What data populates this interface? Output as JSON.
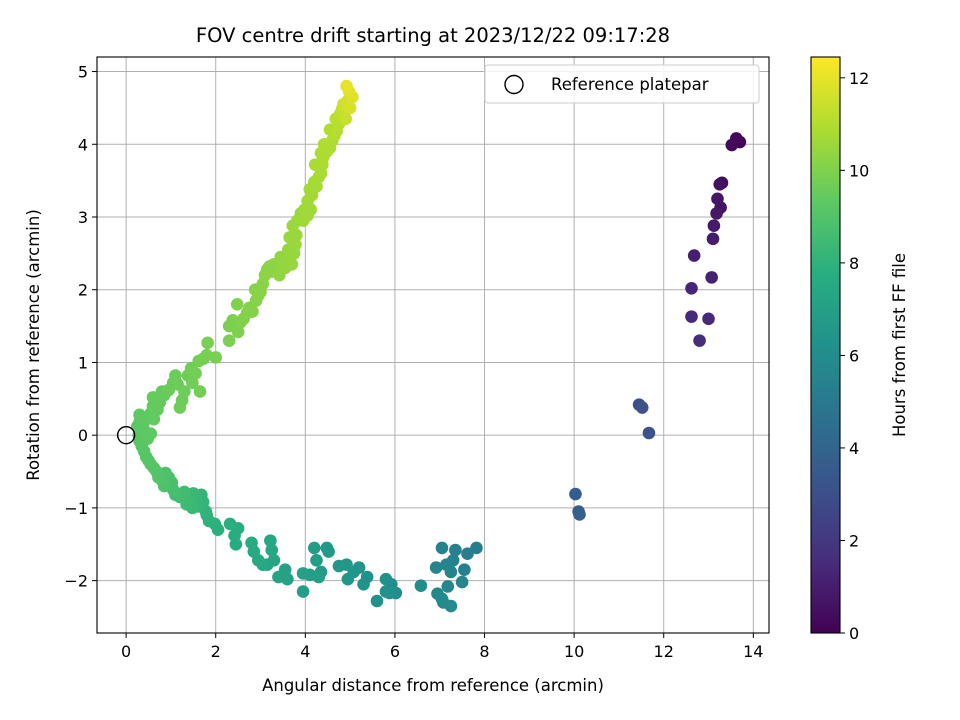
{
  "chart_data": {
    "type": "scatter",
    "title": "FOV centre drift starting at 2023/12/22 09:17:28",
    "xlabel": "Angular distance from reference (arcmin)",
    "ylabel": "Rotation from reference (arcmin)",
    "xlim": [
      -0.65,
      14.35
    ],
    "ylim": [
      -2.72,
      5.2
    ],
    "xticks": [
      0,
      2,
      4,
      6,
      8,
      10,
      12,
      14
    ],
    "yticks": [
      -2,
      -1,
      0,
      1,
      2,
      3,
      4,
      5
    ],
    "grid": true,
    "legend": {
      "position": "top-right",
      "entries": [
        "Reference platepar"
      ]
    },
    "reference_point": {
      "x": 0,
      "y": 0
    },
    "colorbar": {
      "label": "Hours from first FF file",
      "colormap": "viridis",
      "range": [
        0,
        12.45
      ],
      "ticks": [
        0,
        2,
        4,
        6,
        8,
        10,
        12
      ]
    },
    "points": [
      {
        "x": 13.7,
        "y": 4.03,
        "c": 0.1
      },
      {
        "x": 13.62,
        "y": 4.08,
        "c": 0.2
      },
      {
        "x": 13.52,
        "y": 3.99,
        "c": 0.3
      },
      {
        "x": 13.3,
        "y": 3.47,
        "c": 0.4
      },
      {
        "x": 13.25,
        "y": 3.45,
        "c": 0.5
      },
      {
        "x": 13.27,
        "y": 3.13,
        "c": 0.6
      },
      {
        "x": 13.2,
        "y": 3.25,
        "c": 0.7
      },
      {
        "x": 13.18,
        "y": 3.05,
        "c": 0.8
      },
      {
        "x": 13.12,
        "y": 2.88,
        "c": 0.9
      },
      {
        "x": 13.1,
        "y": 2.7,
        "c": 1.0
      },
      {
        "x": 12.68,
        "y": 2.47,
        "c": 1.1
      },
      {
        "x": 13.07,
        "y": 2.17,
        "c": 1.2
      },
      {
        "x": 12.62,
        "y": 2.02,
        "c": 1.3
      },
      {
        "x": 12.62,
        "y": 1.63,
        "c": 1.4
      },
      {
        "x": 13.0,
        "y": 1.6,
        "c": 1.5
      },
      {
        "x": 12.8,
        "y": 1.3,
        "c": 1.6
      },
      {
        "x": 11.45,
        "y": 0.42,
        "c": 3.0
      },
      {
        "x": 11.52,
        "y": 0.38,
        "c": 3.1
      },
      {
        "x": 11.67,
        "y": 0.03,
        "c": 3.2
      },
      {
        "x": 10.03,
        "y": -0.81,
        "c": 3.6
      },
      {
        "x": 10.1,
        "y": -1.05,
        "c": 3.7
      },
      {
        "x": 10.12,
        "y": -1.09,
        "c": 3.75
      },
      {
        "x": 7.82,
        "y": -1.55,
        "c": 5.2
      },
      {
        "x": 7.62,
        "y": -1.63,
        "c": 5.25
      },
      {
        "x": 7.35,
        "y": -1.58,
        "c": 5.3
      },
      {
        "x": 7.55,
        "y": -1.85,
        "c": 5.35
      },
      {
        "x": 7.3,
        "y": -1.72,
        "c": 5.4
      },
      {
        "x": 7.05,
        "y": -1.55,
        "c": 5.45
      },
      {
        "x": 7.25,
        "y": -1.88,
        "c": 5.5
      },
      {
        "x": 7.15,
        "y": -1.78,
        "c": 5.55
      },
      {
        "x": 6.92,
        "y": -1.82,
        "c": 5.6
      },
      {
        "x": 7.5,
        "y": -2.02,
        "c": 5.65
      },
      {
        "x": 7.18,
        "y": -2.08,
        "c": 5.7
      },
      {
        "x": 6.95,
        "y": -2.18,
        "c": 5.75
      },
      {
        "x": 7.08,
        "y": -2.3,
        "c": 5.8
      },
      {
        "x": 7.25,
        "y": -2.35,
        "c": 5.85
      },
      {
        "x": 7.05,
        "y": -2.25,
        "c": 5.9
      },
      {
        "x": 6.58,
        "y": -2.07,
        "c": 5.95
      },
      {
        "x": 6.02,
        "y": -2.17,
        "c": 6.0
      },
      {
        "x": 5.92,
        "y": -2.05,
        "c": 6.05
      },
      {
        "x": 5.8,
        "y": -2.15,
        "c": 6.1
      },
      {
        "x": 5.88,
        "y": -2.17,
        "c": 6.15
      },
      {
        "x": 5.8,
        "y": -1.98,
        "c": 6.2
      },
      {
        "x": 5.6,
        "y": -2.28,
        "c": 6.25
      },
      {
        "x": 5.38,
        "y": -1.95,
        "c": 6.3
      },
      {
        "x": 5.3,
        "y": -2.05,
        "c": 6.35
      },
      {
        "x": 5.2,
        "y": -1.82,
        "c": 6.4
      },
      {
        "x": 5.08,
        "y": -1.88,
        "c": 6.45
      },
      {
        "x": 4.95,
        "y": -1.98,
        "c": 6.5
      },
      {
        "x": 4.92,
        "y": -1.78,
        "c": 6.55
      },
      {
        "x": 4.75,
        "y": -1.8,
        "c": 6.6
      },
      {
        "x": 4.48,
        "y": -1.55,
        "c": 6.65
      },
      {
        "x": 4.52,
        "y": -1.6,
        "c": 6.7
      },
      {
        "x": 4.35,
        "y": -1.88,
        "c": 6.75
      },
      {
        "x": 4.2,
        "y": -1.55,
        "c": 6.8
      },
      {
        "x": 4.25,
        "y": -1.72,
        "c": 6.85
      },
      {
        "x": 4.1,
        "y": -1.92,
        "c": 6.9
      },
      {
        "x": 4.3,
        "y": -1.95,
        "c": 6.95
      },
      {
        "x": 3.95,
        "y": -2.15,
        "c": 7.0
      },
      {
        "x": 3.95,
        "y": -1.9,
        "c": 7.05
      },
      {
        "x": 3.6,
        "y": -1.98,
        "c": 7.1
      },
      {
        "x": 3.55,
        "y": -1.85,
        "c": 7.15
      },
      {
        "x": 3.4,
        "y": -1.95,
        "c": 7.2
      },
      {
        "x": 3.3,
        "y": -1.72,
        "c": 7.25
      },
      {
        "x": 3.15,
        "y": -1.78,
        "c": 7.3
      },
      {
        "x": 3.25,
        "y": -1.58,
        "c": 7.35
      },
      {
        "x": 3.22,
        "y": -1.45,
        "c": 7.4
      },
      {
        "x": 3.05,
        "y": -1.78,
        "c": 7.45
      },
      {
        "x": 2.95,
        "y": -1.72,
        "c": 7.5
      },
      {
        "x": 2.85,
        "y": -1.6,
        "c": 7.55
      },
      {
        "x": 2.8,
        "y": -1.48,
        "c": 7.6
      },
      {
        "x": 2.45,
        "y": -1.5,
        "c": 7.65
      },
      {
        "x": 2.42,
        "y": -1.38,
        "c": 7.7
      },
      {
        "x": 2.5,
        "y": -1.28,
        "c": 7.75
      },
      {
        "x": 2.32,
        "y": -1.22,
        "c": 7.8
      },
      {
        "x": 2.05,
        "y": -1.3,
        "c": 7.85
      },
      {
        "x": 1.98,
        "y": -1.22,
        "c": 7.9
      },
      {
        "x": 1.85,
        "y": -1.18,
        "c": 7.95
      },
      {
        "x": 1.8,
        "y": -1.1,
        "c": 8.0
      },
      {
        "x": 1.78,
        "y": -1.05,
        "c": 8.05
      },
      {
        "x": 1.72,
        "y": -0.92,
        "c": 8.1
      },
      {
        "x": 1.68,
        "y": -0.82,
        "c": 8.15
      },
      {
        "x": 1.6,
        "y": -0.98,
        "c": 8.2
      },
      {
        "x": 1.55,
        "y": -0.88,
        "c": 8.25
      },
      {
        "x": 1.5,
        "y": -0.8,
        "c": 8.3
      },
      {
        "x": 1.48,
        "y": -1.0,
        "c": 8.35
      },
      {
        "x": 1.42,
        "y": -0.88,
        "c": 8.4
      },
      {
        "x": 1.35,
        "y": -0.95,
        "c": 8.45
      },
      {
        "x": 1.3,
        "y": -0.78,
        "c": 8.5
      },
      {
        "x": 1.25,
        "y": -0.82,
        "c": 8.55
      },
      {
        "x": 1.2,
        "y": -0.85,
        "c": 8.6
      },
      {
        "x": 1.1,
        "y": -0.82,
        "c": 8.65
      },
      {
        "x": 1.05,
        "y": -0.75,
        "c": 8.7
      },
      {
        "x": 1.02,
        "y": -0.65,
        "c": 8.75
      },
      {
        "x": 0.95,
        "y": -0.58,
        "c": 8.8
      },
      {
        "x": 0.88,
        "y": -0.52,
        "c": 8.85
      },
      {
        "x": 0.85,
        "y": -0.7,
        "c": 8.9
      },
      {
        "x": 0.8,
        "y": -0.62,
        "c": 8.95
      },
      {
        "x": 0.72,
        "y": -0.58,
        "c": 9.0
      },
      {
        "x": 0.68,
        "y": -0.5,
        "c": 9.02
      },
      {
        "x": 0.62,
        "y": -0.45,
        "c": 9.04
      },
      {
        "x": 0.55,
        "y": -0.4,
        "c": 9.06
      },
      {
        "x": 0.5,
        "y": -0.35,
        "c": 9.08
      },
      {
        "x": 0.45,
        "y": -0.3,
        "c": 9.1
      },
      {
        "x": 0.4,
        "y": -0.22,
        "c": 9.12
      },
      {
        "x": 0.35,
        "y": -0.15,
        "c": 9.14
      },
      {
        "x": 0.3,
        "y": -0.08,
        "c": 9.16
      },
      {
        "x": 0.28,
        "y": 0.0,
        "c": 9.18
      },
      {
        "x": 0.32,
        "y": 0.08,
        "c": 9.2
      },
      {
        "x": 0.25,
        "y": 0.12,
        "c": 9.22
      },
      {
        "x": 0.3,
        "y": 0.18,
        "c": 9.24
      },
      {
        "x": 0.38,
        "y": 0.15,
        "c": 9.26
      },
      {
        "x": 0.42,
        "y": 0.05,
        "c": 9.28
      },
      {
        "x": 0.48,
        "y": -0.05,
        "c": 9.3
      },
      {
        "x": 0.55,
        "y": 0.02,
        "c": 9.32
      },
      {
        "x": 0.3,
        "y": 0.28,
        "c": 9.34
      },
      {
        "x": 0.45,
        "y": 0.22,
        "c": 9.36
      },
      {
        "x": 0.55,
        "y": 0.3,
        "c": 9.38
      },
      {
        "x": 0.62,
        "y": 0.22,
        "c": 9.4
      },
      {
        "x": 0.6,
        "y": 0.4,
        "c": 9.42
      },
      {
        "x": 0.7,
        "y": 0.35,
        "c": 9.44
      },
      {
        "x": 0.75,
        "y": 0.45,
        "c": 9.46
      },
      {
        "x": 0.6,
        "y": 0.52,
        "c": 9.48
      },
      {
        "x": 0.85,
        "y": 0.55,
        "c": 9.5
      },
      {
        "x": 0.8,
        "y": 0.6,
        "c": 9.52
      },
      {
        "x": 0.95,
        "y": 0.62,
        "c": 9.54
      },
      {
        "x": 1.05,
        "y": 0.72,
        "c": 9.56
      },
      {
        "x": 1.1,
        "y": 0.82,
        "c": 9.58
      },
      {
        "x": 1.15,
        "y": 0.7,
        "c": 9.6
      },
      {
        "x": 1.25,
        "y": 0.48,
        "c": 9.62
      },
      {
        "x": 1.2,
        "y": 0.38,
        "c": 9.64
      },
      {
        "x": 1.3,
        "y": 0.6,
        "c": 9.66
      },
      {
        "x": 1.38,
        "y": 0.82,
        "c": 9.68
      },
      {
        "x": 1.45,
        "y": 0.92,
        "c": 9.7
      },
      {
        "x": 1.48,
        "y": 0.72,
        "c": 9.72
      },
      {
        "x": 1.55,
        "y": 0.85,
        "c": 9.74
      },
      {
        "x": 1.65,
        "y": 0.6,
        "c": 9.76
      },
      {
        "x": 1.62,
        "y": 1.02,
        "c": 9.78
      },
      {
        "x": 1.72,
        "y": 1.05,
        "c": 9.8
      },
      {
        "x": 1.8,
        "y": 1.1,
        "c": 9.82
      },
      {
        "x": 1.82,
        "y": 1.27,
        "c": 9.84
      },
      {
        "x": 2.0,
        "y": 1.07,
        "c": 9.86
      },
      {
        "x": 2.3,
        "y": 1.3,
        "c": 9.88
      },
      {
        "x": 2.3,
        "y": 1.5,
        "c": 9.9
      },
      {
        "x": 2.38,
        "y": 1.58,
        "c": 9.92
      },
      {
        "x": 2.45,
        "y": 1.5,
        "c": 9.94
      },
      {
        "x": 2.5,
        "y": 1.42,
        "c": 9.96
      },
      {
        "x": 2.55,
        "y": 1.55,
        "c": 9.98
      },
      {
        "x": 2.48,
        "y": 1.8,
        "c": 10.0
      },
      {
        "x": 2.62,
        "y": 1.6,
        "c": 10.02
      },
      {
        "x": 2.7,
        "y": 1.68,
        "c": 10.04
      },
      {
        "x": 2.75,
        "y": 1.75,
        "c": 10.06
      },
      {
        "x": 2.82,
        "y": 1.7,
        "c": 10.08
      },
      {
        "x": 2.9,
        "y": 1.85,
        "c": 10.1
      },
      {
        "x": 2.95,
        "y": 1.92,
        "c": 10.12
      },
      {
        "x": 3.0,
        "y": 1.97,
        "c": 10.14
      },
      {
        "x": 2.88,
        "y": 2.0,
        "c": 10.16
      },
      {
        "x": 3.05,
        "y": 2.08,
        "c": 10.18
      },
      {
        "x": 3.1,
        "y": 2.2,
        "c": 10.2
      },
      {
        "x": 3.15,
        "y": 2.28,
        "c": 10.22
      },
      {
        "x": 3.25,
        "y": 2.25,
        "c": 10.24
      },
      {
        "x": 3.2,
        "y": 2.32,
        "c": 10.26
      },
      {
        "x": 3.3,
        "y": 2.35,
        "c": 10.28
      },
      {
        "x": 3.35,
        "y": 2.3,
        "c": 10.3
      },
      {
        "x": 3.42,
        "y": 2.2,
        "c": 10.32
      },
      {
        "x": 3.45,
        "y": 2.45,
        "c": 10.34
      },
      {
        "x": 3.5,
        "y": 2.38,
        "c": 10.36
      },
      {
        "x": 3.55,
        "y": 2.3,
        "c": 10.38
      },
      {
        "x": 3.6,
        "y": 2.4,
        "c": 10.4
      },
      {
        "x": 3.62,
        "y": 2.55,
        "c": 10.42
      },
      {
        "x": 3.7,
        "y": 2.35,
        "c": 10.44
      },
      {
        "x": 3.75,
        "y": 2.5,
        "c": 10.46
      },
      {
        "x": 3.78,
        "y": 2.62,
        "c": 10.48
      },
      {
        "x": 3.65,
        "y": 2.72,
        "c": 10.5
      },
      {
        "x": 3.8,
        "y": 2.75,
        "c": 10.52
      },
      {
        "x": 3.72,
        "y": 2.88,
        "c": 10.54
      },
      {
        "x": 3.82,
        "y": 2.95,
        "c": 10.56
      },
      {
        "x": 3.9,
        "y": 3.05,
        "c": 10.58
      },
      {
        "x": 3.95,
        "y": 2.95,
        "c": 10.6
      },
      {
        "x": 3.98,
        "y": 3.1,
        "c": 10.62
      },
      {
        "x": 4.05,
        "y": 3.02,
        "c": 10.64
      },
      {
        "x": 4.12,
        "y": 3.1,
        "c": 10.66
      },
      {
        "x": 4.05,
        "y": 3.22,
        "c": 10.68
      },
      {
        "x": 4.1,
        "y": 3.38,
        "c": 10.7
      },
      {
        "x": 4.15,
        "y": 3.3,
        "c": 10.72
      },
      {
        "x": 4.2,
        "y": 3.48,
        "c": 10.74
      },
      {
        "x": 4.25,
        "y": 3.42,
        "c": 10.76
      },
      {
        "x": 4.3,
        "y": 3.55,
        "c": 10.78
      },
      {
        "x": 4.35,
        "y": 3.6,
        "c": 10.8
      },
      {
        "x": 4.22,
        "y": 3.72,
        "c": 10.82
      },
      {
        "x": 4.38,
        "y": 3.72,
        "c": 10.84
      },
      {
        "x": 4.35,
        "y": 3.88,
        "c": 10.86
      },
      {
        "x": 4.4,
        "y": 3.82,
        "c": 10.88
      },
      {
        "x": 4.48,
        "y": 3.9,
        "c": 10.9
      },
      {
        "x": 4.42,
        "y": 4.0,
        "c": 10.92
      },
      {
        "x": 4.55,
        "y": 3.95,
        "c": 10.94
      },
      {
        "x": 4.6,
        "y": 4.05,
        "c": 10.96
      },
      {
        "x": 4.65,
        "y": 4.12,
        "c": 10.98
      },
      {
        "x": 4.55,
        "y": 4.2,
        "c": 11.0
      },
      {
        "x": 4.7,
        "y": 4.18,
        "c": 11.05
      },
      {
        "x": 4.75,
        "y": 4.28,
        "c": 11.1
      },
      {
        "x": 4.68,
        "y": 4.35,
        "c": 11.15
      },
      {
        "x": 4.78,
        "y": 4.42,
        "c": 11.2
      },
      {
        "x": 4.82,
        "y": 4.48,
        "c": 11.3
      },
      {
        "x": 4.9,
        "y": 4.35,
        "c": 11.4
      },
      {
        "x": 4.85,
        "y": 4.55,
        "c": 11.5
      },
      {
        "x": 4.95,
        "y": 4.6,
        "c": 11.6
      },
      {
        "x": 5.0,
        "y": 4.5,
        "c": 11.7
      },
      {
        "x": 5.05,
        "y": 4.65,
        "c": 11.8
      },
      {
        "x": 4.98,
        "y": 4.72,
        "c": 11.9
      },
      {
        "x": 4.92,
        "y": 4.8,
        "c": 12.0
      }
    ]
  }
}
